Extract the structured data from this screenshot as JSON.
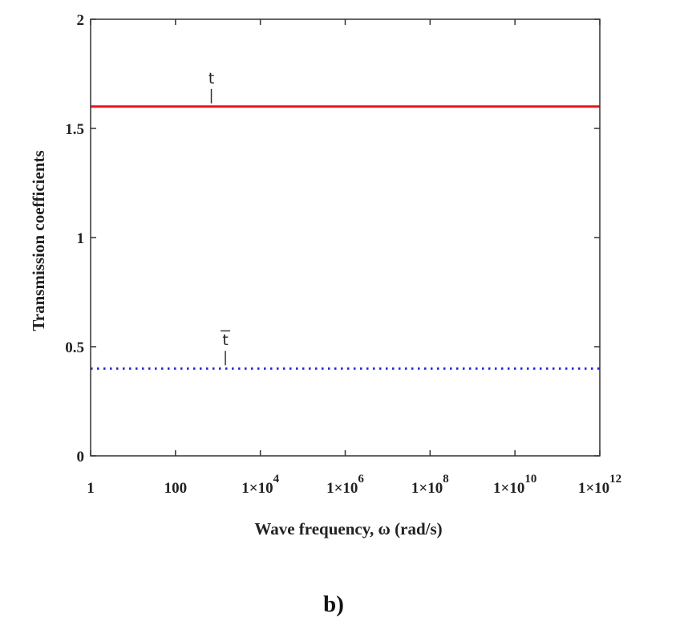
{
  "chart_data": {
    "type": "line",
    "xlabel": "Wave frequency, ω (rad/s)",
    "ylabel": "Transmission coefficients",
    "x_scale": "log",
    "xlim": [
      1,
      1000000000000
    ],
    "ylim": [
      0,
      2
    ],
    "x_ticks": [
      {
        "value": 1,
        "base": "1",
        "exp": ""
      },
      {
        "value": 100,
        "base": "100",
        "exp": ""
      },
      {
        "value": 10000,
        "base": "1×10",
        "exp": "4"
      },
      {
        "value": 1000000,
        "base": "1×10",
        "exp": "6"
      },
      {
        "value": 100000000,
        "base": "1×10",
        "exp": "8"
      },
      {
        "value": 10000000000,
        "base": "1×10",
        "exp": "10"
      },
      {
        "value": 1000000000000,
        "base": "1×10",
        "exp": "12"
      }
    ],
    "y_ticks": [
      {
        "value": 0,
        "label": "0"
      },
      {
        "value": 0.5,
        "label": "0.5"
      },
      {
        "value": 1,
        "label": "1"
      },
      {
        "value": 1.5,
        "label": "1.5"
      },
      {
        "value": 2,
        "label": "2"
      }
    ],
    "grid": false,
    "series": [
      {
        "name": "t",
        "overline": false,
        "color": "#e8141e",
        "style": "solid",
        "x": [
          1,
          1000000000000
        ],
        "y": [
          1.6,
          1.6
        ],
        "label_x": 700
      },
      {
        "name": "t",
        "overline": true,
        "color": "#2a2ad0",
        "style": "dotted",
        "x": [
          1,
          1000000000000
        ],
        "y": [
          0.4,
          0.4
        ],
        "label_x": 1500
      }
    ],
    "caption": "b)"
  }
}
